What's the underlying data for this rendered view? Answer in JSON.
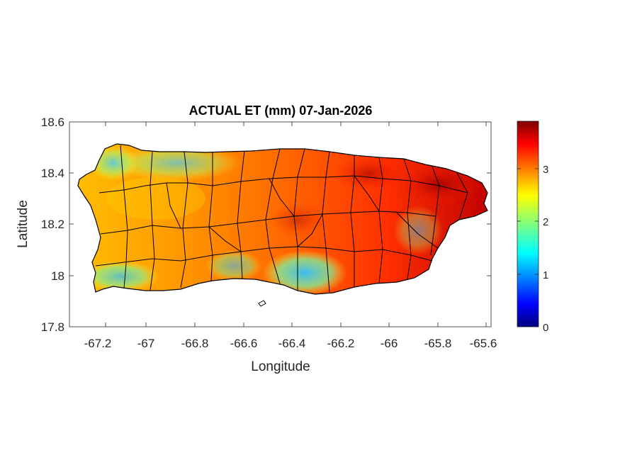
{
  "title": "ACTUAL ET (mm) 07-Jan-2026",
  "xlabel": "Longitude",
  "ylabel": "Latitude",
  "x_ticks": [
    "-67.2",
    "-67",
    "-66.8",
    "-66.6",
    "-66.4",
    "-66.2",
    "-66",
    "-65.8",
    "-65.6"
  ],
  "x_tick_values": [
    -67.2,
    -67.0,
    -66.8,
    -66.6,
    -66.4,
    -66.2,
    -66.0,
    -65.8,
    -65.6
  ],
  "y_ticks": [
    "18.6",
    "18.4",
    "18.2",
    "18",
    "17.8"
  ],
  "y_tick_values": [
    18.6,
    18.4,
    18.2,
    18.0,
    17.8
  ],
  "xlim": [
    -67.3,
    -65.58
  ],
  "ylim": [
    17.8,
    18.6
  ],
  "colorbar": {
    "ticks": [
      "0",
      "1",
      "2",
      "3"
    ],
    "tick_values": [
      0,
      1,
      2,
      3
    ],
    "range": [
      0,
      3.9
    ],
    "colormap": "jet"
  },
  "colors": {
    "low": "#00007f",
    "mid": "#80ff80",
    "high": "#7f0000",
    "outline": "#000000"
  }
}
